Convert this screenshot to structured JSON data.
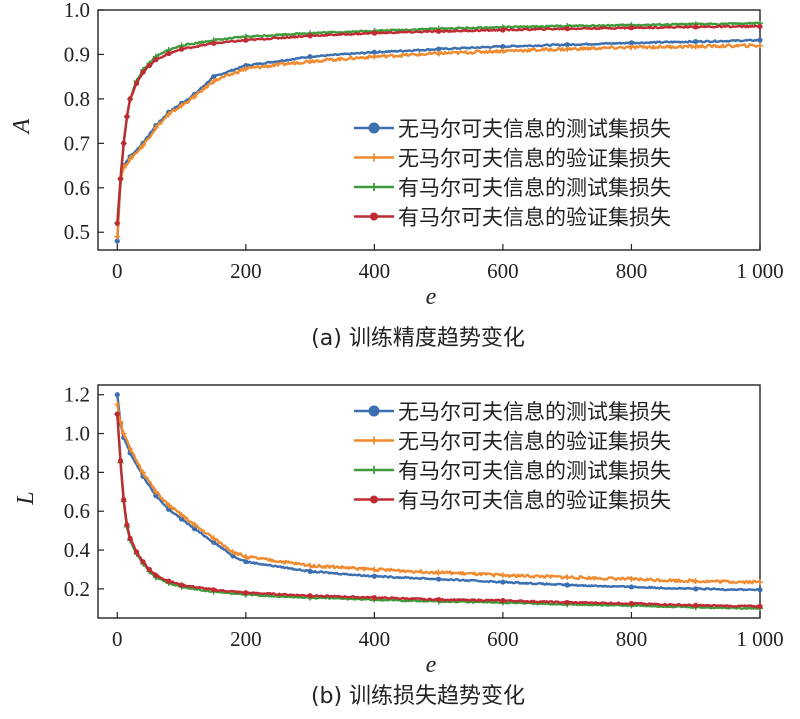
{
  "chart_data": [
    {
      "type": "line",
      "caption": "(a) 训练精度趋势变化",
      "xlabel": "e",
      "ylabel": "A",
      "xlim": [
        -30,
        1000
      ],
      "ylim": [
        0.46,
        1.0
      ],
      "xticks": [
        0,
        200,
        400,
        600,
        800,
        1000
      ],
      "xtick_labels": [
        "0",
        "200",
        "400",
        "600",
        "800",
        "1 000"
      ],
      "yticks": [
        0.5,
        0.6,
        0.7,
        0.8,
        0.9,
        1.0
      ],
      "ytick_labels": [
        "0.5",
        "0.6",
        "0.7",
        "0.8",
        "0.9",
        "1.0"
      ],
      "grid": false,
      "legend_position": "center-right",
      "series": [
        {
          "name": "无马尔可夫信息的测试集损失",
          "color": "#3b6fb0",
          "marker": "circle",
          "x": [
            0,
            5,
            10,
            20,
            40,
            60,
            80,
            100,
            120,
            150,
            200,
            300,
            400,
            500,
            600,
            700,
            800,
            900,
            1000
          ],
          "y": [
            0.48,
            0.62,
            0.65,
            0.67,
            0.7,
            0.74,
            0.77,
            0.79,
            0.81,
            0.85,
            0.875,
            0.895,
            0.905,
            0.912,
            0.918,
            0.922,
            0.926,
            0.929,
            0.932
          ]
        },
        {
          "name": "无马尔可夫信息的验证集损失",
          "color": "#ef8a2e",
          "marker": "plus",
          "x": [
            0,
            5,
            10,
            20,
            40,
            60,
            80,
            100,
            120,
            150,
            200,
            300,
            400,
            500,
            600,
            700,
            800,
            900,
            1000
          ],
          "y": [
            0.49,
            0.62,
            0.645,
            0.665,
            0.695,
            0.735,
            0.765,
            0.785,
            0.805,
            0.84,
            0.868,
            0.885,
            0.895,
            0.902,
            0.908,
            0.912,
            0.916,
            0.918,
            0.92
          ]
        },
        {
          "name": "有马尔可夫信息的测试集损失",
          "color": "#3e9a3b",
          "marker": "plus",
          "x": [
            0,
            5,
            10,
            15,
            20,
            30,
            40,
            50,
            60,
            80,
            100,
            150,
            200,
            300,
            400,
            500,
            600,
            700,
            800,
            900,
            1000
          ],
          "y": [
            0.52,
            0.62,
            0.7,
            0.76,
            0.8,
            0.84,
            0.865,
            0.88,
            0.895,
            0.91,
            0.92,
            0.932,
            0.94,
            0.948,
            0.953,
            0.958,
            0.961,
            0.964,
            0.966,
            0.968,
            0.97
          ]
        },
        {
          "name": "有马尔可夫信息的验证集损失",
          "color": "#c02a32",
          "marker": "circle",
          "x": [
            0,
            5,
            10,
            15,
            20,
            30,
            40,
            50,
            60,
            80,
            100,
            150,
            200,
            300,
            400,
            500,
            600,
            700,
            800,
            900,
            1000
          ],
          "y": [
            0.52,
            0.62,
            0.7,
            0.76,
            0.8,
            0.835,
            0.86,
            0.875,
            0.888,
            0.902,
            0.912,
            0.925,
            0.932,
            0.942,
            0.948,
            0.952,
            0.955,
            0.958,
            0.96,
            0.962,
            0.963
          ]
        }
      ]
    },
    {
      "type": "line",
      "caption": "(b) 训练损失趋势变化",
      "xlabel": "e",
      "ylabel": "L",
      "xlim": [
        -30,
        1000
      ],
      "ylim": [
        0.05,
        1.25
      ],
      "xticks": [
        0,
        200,
        400,
        600,
        800,
        1000
      ],
      "xtick_labels": [
        "0",
        "200",
        "400",
        "600",
        "800",
        "1 000"
      ],
      "yticks": [
        0.2,
        0.4,
        0.6,
        0.8,
        1.0,
        1.2
      ],
      "ytick_labels": [
        "0.2",
        "0.4",
        "0.6",
        "0.8",
        "1.0",
        "1.2"
      ],
      "grid": false,
      "legend_position": "top-right",
      "series": [
        {
          "name": "无马尔可夫信息的测试集损失",
          "color": "#3b6fb0",
          "marker": "circle",
          "x": [
            0,
            5,
            10,
            20,
            40,
            60,
            80,
            100,
            120,
            150,
            180,
            200,
            300,
            400,
            500,
            600,
            700,
            800,
            900,
            1000
          ],
          "y": [
            1.2,
            1.05,
            0.98,
            0.9,
            0.78,
            0.68,
            0.61,
            0.56,
            0.51,
            0.44,
            0.37,
            0.34,
            0.29,
            0.265,
            0.25,
            0.235,
            0.22,
            0.21,
            0.2,
            0.195
          ]
        },
        {
          "name": "无马尔可夫信息的验证集损失",
          "color": "#ef8a2e",
          "marker": "plus",
          "x": [
            0,
            5,
            10,
            20,
            40,
            60,
            80,
            100,
            120,
            150,
            180,
            200,
            300,
            400,
            500,
            600,
            700,
            800,
            900,
            1000
          ],
          "y": [
            1.15,
            1.06,
            1.0,
            0.92,
            0.8,
            0.7,
            0.63,
            0.58,
            0.53,
            0.46,
            0.39,
            0.365,
            0.32,
            0.3,
            0.285,
            0.27,
            0.26,
            0.25,
            0.24,
            0.235
          ]
        },
        {
          "name": "有马尔可夫信息的测试集损失",
          "color": "#3e9a3b",
          "marker": "plus",
          "x": [
            0,
            5,
            10,
            15,
            20,
            30,
            40,
            50,
            60,
            80,
            100,
            150,
            200,
            300,
            400,
            500,
            600,
            700,
            800,
            900,
            1000
          ],
          "y": [
            1.1,
            0.85,
            0.65,
            0.52,
            0.45,
            0.38,
            0.33,
            0.29,
            0.26,
            0.23,
            0.21,
            0.185,
            0.17,
            0.155,
            0.145,
            0.135,
            0.13,
            0.12,
            0.115,
            0.105,
            0.1
          ]
        },
        {
          "name": "有马尔可夫信息的验证集损失",
          "color": "#c02a32",
          "marker": "circle",
          "x": [
            0,
            5,
            10,
            15,
            20,
            30,
            40,
            50,
            60,
            80,
            100,
            150,
            200,
            300,
            400,
            500,
            600,
            700,
            800,
            900,
            1000
          ],
          "y": [
            1.1,
            0.86,
            0.66,
            0.53,
            0.46,
            0.39,
            0.34,
            0.3,
            0.27,
            0.24,
            0.22,
            0.195,
            0.18,
            0.165,
            0.155,
            0.145,
            0.14,
            0.13,
            0.125,
            0.115,
            0.11
          ]
        }
      ]
    }
  ]
}
